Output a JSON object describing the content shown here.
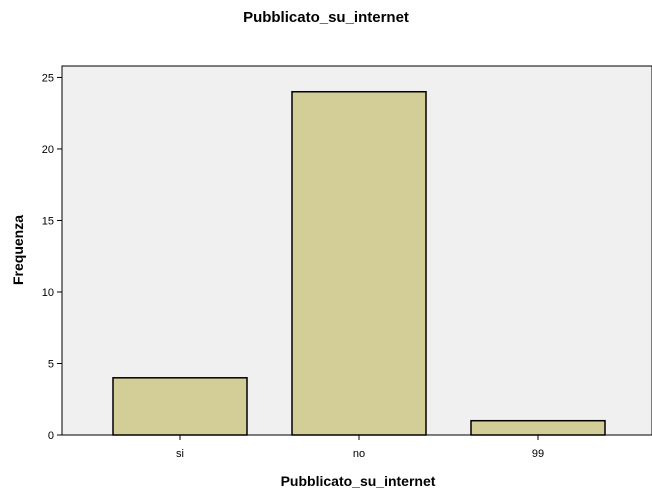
{
  "chart_data": {
    "type": "bar",
    "title": "Pubblicato_su_internet",
    "xlabel": "Pubblicato_su_internet",
    "ylabel": "Frequenza",
    "categories": [
      "si",
      "no",
      "99"
    ],
    "values": [
      4,
      24,
      1
    ],
    "ylim": [
      0,
      25
    ],
    "yticks": [
      0,
      5,
      10,
      15,
      20,
      25
    ],
    "grid": false,
    "legend": "none",
    "colors": {
      "bar_fill": "#d3ce97",
      "bar_stroke": "#000000",
      "plot_background": "#f0f0f0"
    }
  }
}
